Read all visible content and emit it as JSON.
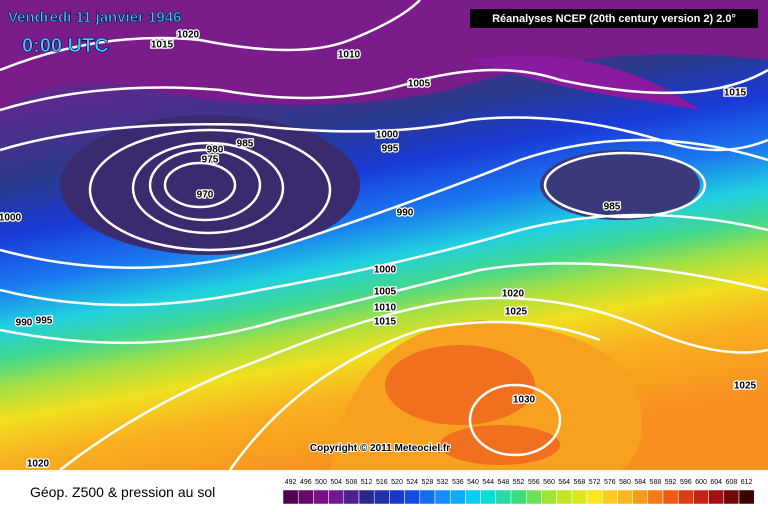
{
  "header": {
    "title": "Vendredi 11 janvier 1946",
    "time": "0:00 UTC",
    "source": "Réanalyses NCEP (20th century version 2) 2.0°",
    "copyright": "Copyright © 2011 Meteociel.fr"
  },
  "isobars": [
    "1020",
    "1015",
    "1010",
    "1005",
    "1000",
    "995",
    "980",
    "975",
    "985",
    "970",
    "990",
    "985",
    "1015",
    "1000",
    "1000",
    "1005",
    "1010",
    "1015",
    "1020",
    "1025",
    "1030",
    "1025",
    "990",
    "995",
    "1020"
  ],
  "legend": {
    "title": "Géop. Z500 & pression au sol",
    "labels": [
      "492",
      "496",
      "500",
      "504",
      "508",
      "512",
      "516",
      "520",
      "524",
      "528",
      "532",
      "536",
      "540",
      "544",
      "548",
      "552",
      "556",
      "560",
      "564",
      "568",
      "572",
      "576",
      "580",
      "584",
      "588",
      "592",
      "596",
      "600",
      "604",
      "608",
      "612"
    ]
  }
}
